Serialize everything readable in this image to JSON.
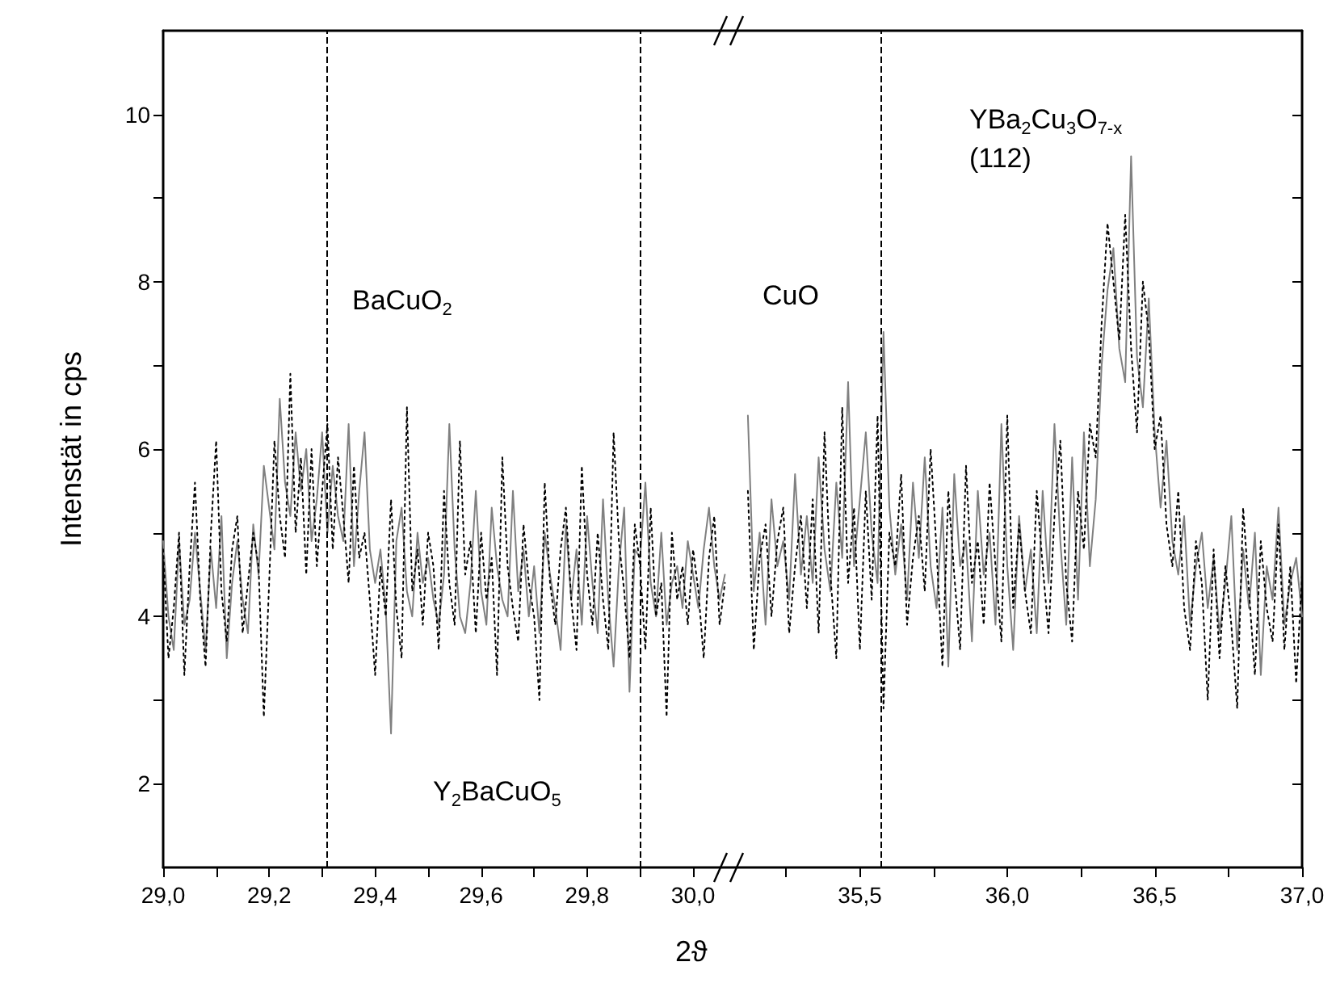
{
  "chart_data": [
    {
      "type": "line",
      "ylabel": "Intenstät in cps",
      "xlabel": "2ϑ",
      "marker": "none",
      "xlim": [
        29.0,
        30.07
      ],
      "xticks": [
        {
          "value": 29.0,
          "label": "29,0"
        },
        {
          "value": 29.1,
          "label": null
        },
        {
          "value": 29.2,
          "label": "29,2"
        },
        {
          "value": 29.3,
          "label": null
        },
        {
          "value": 29.4,
          "label": "29,4"
        },
        {
          "value": 29.5,
          "label": null
        },
        {
          "value": 29.6,
          "label": "29,6"
        },
        {
          "value": 29.7,
          "label": null
        },
        {
          "value": 29.8,
          "label": "29,8"
        },
        {
          "value": 29.9,
          "label": null
        },
        {
          "value": 30.0,
          "label": "30,0"
        }
      ],
      "ylim": [
        1,
        11
      ],
      "yticks": [
        {
          "value": 3,
          "label": null
        },
        2,
        4,
        6,
        8,
        10,
        {
          "value": 5,
          "label": null
        },
        {
          "value": 7,
          "label": null
        },
        {
          "value": 9,
          "label": null
        }
      ],
      "x": [
        29.0,
        29.01,
        29.02,
        29.03,
        29.04,
        29.05,
        29.06,
        29.07,
        29.08,
        29.09,
        29.1,
        29.11,
        29.12,
        29.13,
        29.14,
        29.15,
        29.16,
        29.17,
        29.18,
        29.19,
        29.2,
        29.21,
        29.22,
        29.23,
        29.24,
        29.25,
        29.26,
        29.27,
        29.28,
        29.29,
        29.3,
        29.31,
        29.32,
        29.33,
        29.34,
        29.35,
        29.36,
        29.37,
        29.38,
        29.39,
        29.4,
        29.41,
        29.42,
        29.43,
        29.44,
        29.45,
        29.46,
        29.47,
        29.48,
        29.49,
        29.5,
        29.51,
        29.52,
        29.53,
        29.54,
        29.55,
        29.56,
        29.57,
        29.58,
        29.59,
        29.6,
        29.61,
        29.62,
        29.63,
        29.64,
        29.65,
        29.66,
        29.67,
        29.68,
        29.69,
        29.7,
        29.71,
        29.72,
        29.73,
        29.74,
        29.75,
        29.76,
        29.77,
        29.78,
        29.79,
        29.8,
        29.81,
        29.82,
        29.83,
        29.84,
        29.85,
        29.86,
        29.87,
        29.88,
        29.89,
        29.9,
        29.91,
        29.92,
        29.93,
        29.94,
        29.95,
        29.96,
        29.97,
        29.98,
        29.99,
        30.0,
        30.01,
        30.02,
        30.03,
        30.04,
        30.05,
        30.06
      ],
      "series": [
        {
          "color": "#808080",
          "line_style": "solid",
          "values": [
            4.9,
            4.0,
            3.6,
            4.9,
            3.9,
            4.2,
            5.0,
            4.3,
            3.6,
            4.8,
            4.1,
            5.2,
            3.5,
            4.4,
            4.9,
            4.2,
            3.8,
            5.1,
            4.5,
            5.8,
            5.3,
            4.8,
            6.6,
            5.6,
            5.2,
            6.2,
            5.5,
            6.0,
            4.9,
            5.4,
            6.2,
            5.0,
            5.8,
            5.2,
            4.9,
            6.3,
            4.6,
            5.5,
            6.2,
            4.8,
            4.4,
            4.8,
            4.1,
            2.6,
            4.9,
            5.3,
            4.3,
            4.0,
            5.0,
            4.4,
            4.7,
            4.2,
            3.9,
            4.5,
            6.3,
            4.8,
            4.0,
            3.8,
            4.4,
            5.5,
            4.3,
            3.9,
            5.3,
            4.6,
            4.2,
            4.0,
            5.5,
            4.3,
            4.8,
            4.0,
            4.6,
            3.8,
            5.0,
            4.5,
            4.1,
            3.6,
            5.1,
            4.2,
            4.8,
            3.9,
            5.2,
            4.4,
            3.8,
            5.4,
            4.2,
            3.4,
            4.6,
            5.3,
            3.1,
            4.8,
            4.7,
            5.6,
            4.4,
            4.0,
            5.0,
            3.9,
            4.4,
            4.6,
            4.1,
            4.9,
            4.5,
            4.1,
            4.8,
            5.3,
            4.6,
            4.2,
            4.5
          ]
        },
        {
          "color": "#000000",
          "line_style": "dotted",
          "values": [
            4.8,
            3.5,
            4.1,
            5.0,
            3.3,
            4.6,
            5.6,
            4.2,
            3.4,
            5.0,
            6.1,
            4.3,
            3.7,
            4.8,
            5.2,
            3.8,
            4.4,
            5.0,
            4.6,
            2.8,
            4.4,
            6.1,
            5.2,
            4.7,
            6.9,
            5.0,
            5.9,
            4.5,
            6.0,
            4.6,
            5.5,
            6.3,
            4.8,
            5.9,
            5.2,
            4.4,
            5.8,
            4.7,
            5.0,
            4.2,
            3.3,
            4.6,
            4.0,
            5.4,
            4.1,
            3.5,
            6.5,
            4.3,
            4.8,
            3.9,
            5.0,
            4.6,
            3.6,
            5.5,
            4.4,
            3.9,
            6.1,
            4.5,
            4.9,
            3.8,
            5.0,
            4.2,
            4.7,
            3.3,
            5.9,
            4.6,
            4.1,
            3.7,
            5.1,
            4.4,
            4.0,
            3.0,
            5.6,
            4.4,
            3.9,
            4.8,
            5.3,
            4.2,
            3.6,
            5.8,
            4.5,
            3.9,
            5.0,
            4.2,
            3.6,
            6.2,
            4.9,
            4.3,
            3.5,
            5.1,
            4.6,
            3.6,
            5.3,
            4.0,
            4.4,
            2.8,
            5.0,
            4.2,
            4.6,
            3.9,
            4.8,
            4.3,
            3.5,
            4.7,
            5.2,
            3.9,
            4.4
          ]
        }
      ],
      "ref_lines": [
        {
          "axis": "x",
          "value": 29.31,
          "color": "#000000",
          "line_style": "dashed"
        },
        {
          "axis": "x",
          "value": 29.9,
          "color": "#000000",
          "line_style": "dashed"
        }
      ],
      "annotations": [
        "BaCuO$_{2}$",
        "Y$_{2}$BaCuO$_{5}$"
      ]
    },
    {
      "type": "line",
      "marker": "none",
      "tick_labels": "x",
      "xlim": [
        35.06,
        37.0
      ],
      "xticks": [
        {
          "value": 35.25,
          "label": null
        },
        {
          "value": 35.5,
          "label": "35,5"
        },
        {
          "value": 35.75,
          "label": null
        },
        {
          "value": 36.0,
          "label": "36,0"
        },
        {
          "value": 36.25,
          "label": null
        },
        {
          "value": 36.5,
          "label": "36,5"
        },
        {
          "value": 36.75,
          "label": null
        },
        {
          "value": 37.0,
          "label": "37,0"
        }
      ],
      "ylim": [
        1,
        11
      ],
      "yticks": [
        2,
        4,
        6,
        8,
        10,
        {
          "value": 3,
          "label": null
        },
        {
          "value": 5,
          "label": null
        },
        {
          "value": 7,
          "label": null
        },
        {
          "value": 9,
          "label": null
        }
      ],
      "x": [
        35.12,
        35.14,
        35.16,
        35.18,
        35.2,
        35.22,
        35.24,
        35.26,
        35.28,
        35.3,
        35.32,
        35.34,
        35.36,
        35.38,
        35.4,
        35.42,
        35.44,
        35.46,
        35.48,
        35.5,
        35.52,
        35.54,
        35.56,
        35.58,
        35.6,
        35.62,
        35.64,
        35.66,
        35.68,
        35.7,
        35.72,
        35.74,
        35.76,
        35.78,
        35.8,
        35.82,
        35.84,
        35.86,
        35.88,
        35.9,
        35.92,
        35.94,
        35.96,
        35.98,
        36.0,
        36.02,
        36.04,
        36.06,
        36.08,
        36.1,
        36.12,
        36.14,
        36.16,
        36.18,
        36.2,
        36.22,
        36.24,
        36.26,
        36.28,
        36.3,
        36.32,
        36.34,
        36.36,
        36.38,
        36.4,
        36.42,
        36.44,
        36.46,
        36.48,
        36.5,
        36.52,
        36.54,
        36.56,
        36.58,
        36.6,
        36.62,
        36.64,
        36.66,
        36.68,
        36.7,
        36.72,
        36.74,
        36.76,
        36.78,
        36.8,
        36.82,
        36.84,
        36.86,
        36.88,
        36.9,
        36.92,
        36.94,
        36.96,
        36.98,
        37.0
      ],
      "series": [
        {
          "color": "#808080",
          "line_style": "solid",
          "values": [
            6.4,
            4.3,
            5.0,
            3.9,
            5.4,
            4.6,
            4.9,
            4.2,
            5.7,
            4.5,
            5.2,
            4.4,
            5.9,
            4.8,
            4.3,
            5.6,
            4.7,
            6.8,
            4.6,
            5.4,
            6.2,
            5.0,
            4.4,
            7.4,
            5.3,
            4.5,
            5.1,
            4.2,
            5.6,
            4.7,
            5.9,
            4.6,
            4.1,
            5.3,
            3.4,
            5.7,
            4.6,
            4.9,
            3.7,
            5.5,
            4.5,
            5.0,
            3.9,
            6.3,
            4.6,
            3.6,
            5.2,
            4.3,
            4.8,
            3.8,
            5.5,
            4.4,
            6.3,
            4.9,
            3.9,
            5.9,
            4.2,
            6.2,
            4.6,
            5.4,
            7.0,
            7.9,
            8.4,
            7.2,
            6.8,
            9.5,
            7.1,
            6.5,
            7.8,
            6.2,
            5.3,
            6.1,
            4.9,
            4.5,
            5.2,
            3.9,
            4.6,
            5.0,
            4.1,
            4.7,
            3.8,
            4.4,
            5.2,
            3.6,
            4.8,
            4.1,
            5.0,
            3.3,
            4.6,
            4.2,
            5.3,
            3.9,
            4.4,
            4.7,
            4.0
          ]
        },
        {
          "color": "#000000",
          "line_style": "dotted",
          "values": [
            5.5,
            3.6,
            4.7,
            5.1,
            4.0,
            4.9,
            5.3,
            3.8,
            4.6,
            5.2,
            4.1,
            5.4,
            3.8,
            6.2,
            4.5,
            3.5,
            6.5,
            4.4,
            5.3,
            3.6,
            5.5,
            4.2,
            6.4,
            2.9,
            5.0,
            4.6,
            5.7,
            3.9,
            4.7,
            5.2,
            4.3,
            6.0,
            4.8,
            3.4,
            5.5,
            4.5,
            3.6,
            5.8,
            4.4,
            4.9,
            3.9,
            5.6,
            4.6,
            3.7,
            6.4,
            4.1,
            5.1,
            4.3,
            3.8,
            5.5,
            4.6,
            3.8,
            5.2,
            6.1,
            4.4,
            3.7,
            5.5,
            4.8,
            6.3,
            5.9,
            7.5,
            8.7,
            8.0,
            7.3,
            8.8,
            7.2,
            6.2,
            8.0,
            7.4,
            6.0,
            6.4,
            5.1,
            4.6,
            5.5,
            4.1,
            3.6,
            4.9,
            4.4,
            3.0,
            4.8,
            3.5,
            4.6,
            3.9,
            2.9,
            5.3,
            4.3,
            3.3,
            4.9,
            4.1,
            3.7,
            5.1,
            3.6,
            4.6,
            3.2,
            4.5
          ]
        }
      ],
      "ref_lines": [
        {
          "axis": "x",
          "value": 35.57,
          "color": "#000000",
          "line_style": "dashed"
        }
      ],
      "annotations": [
        "CuO",
        "YBa$_{2}$Cu$_{3}$O$_{7-x}$\n(112)"
      ]
    }
  ]
}
